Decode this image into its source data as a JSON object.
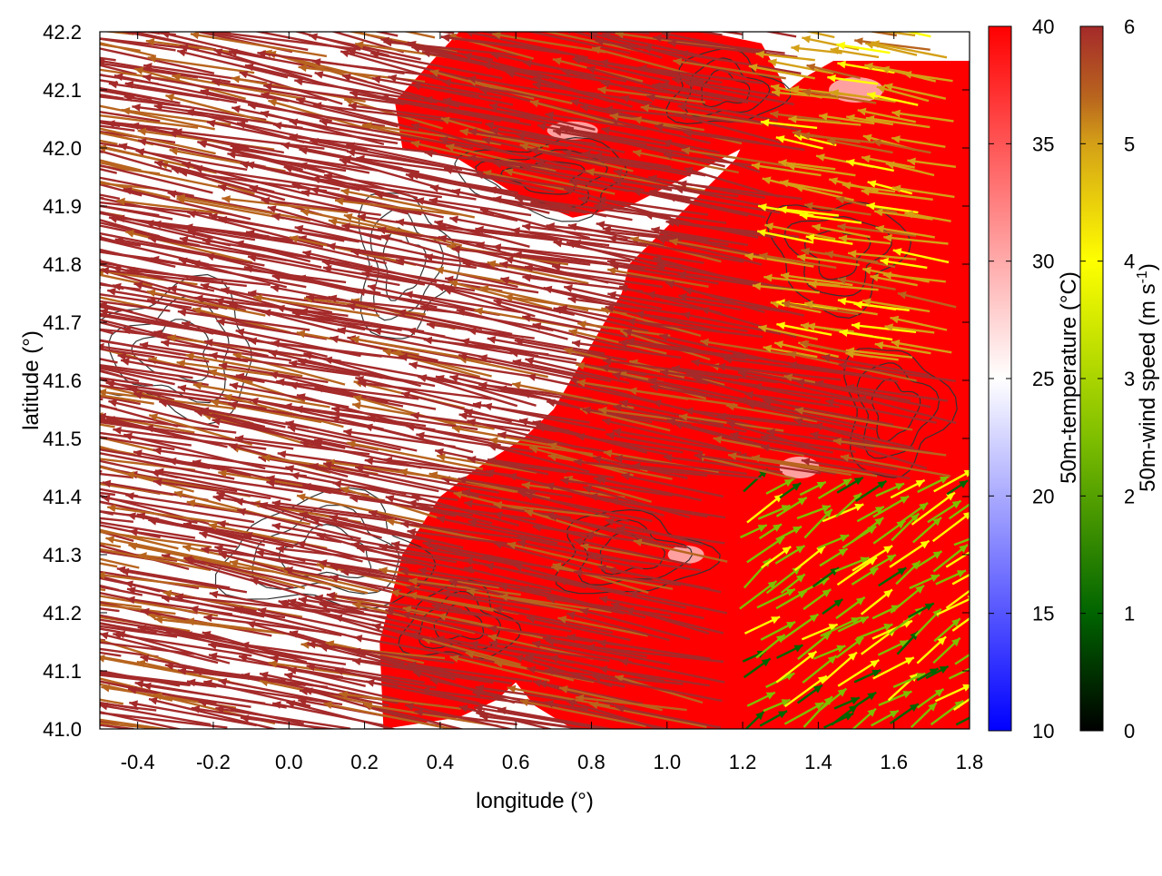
{
  "chart_data": {
    "type": "heatmap",
    "title": "",
    "xlabel": "longitude (°)",
    "ylabel": "latitude (°)",
    "xlim": [
      -0.5,
      1.8
    ],
    "ylim": [
      41.0,
      42.2
    ],
    "x_ticks": [
      "-0.4",
      "-0.2",
      "0.0",
      "0.2",
      "0.4",
      "0.6",
      "0.8",
      "1.0",
      "1.2",
      "1.4",
      "1.6",
      "1.8"
    ],
    "x_tick_values": [
      -0.4,
      -0.2,
      0.0,
      0.2,
      0.4,
      0.6,
      0.8,
      1.0,
      1.2,
      1.4,
      1.6,
      1.8
    ],
    "y_ticks": [
      "41.0",
      "41.1",
      "41.2",
      "41.3",
      "41.4",
      "41.5",
      "41.6",
      "41.7",
      "41.8",
      "41.9",
      "42.0",
      "42.1",
      "42.2"
    ],
    "y_tick_values": [
      41.0,
      41.1,
      41.2,
      41.3,
      41.4,
      41.5,
      41.6,
      41.7,
      41.8,
      41.9,
      42.0,
      42.1,
      42.2
    ],
    "grid": false,
    "temperature_colorbar": {
      "label": "50m-temperature (°C)",
      "range": [
        10,
        40
      ],
      "ticks": [
        "10",
        "15",
        "20",
        "25",
        "30",
        "35",
        "40"
      ],
      "tick_values": [
        10,
        15,
        20,
        25,
        30,
        35,
        40
      ],
      "colors": [
        "#0000ff",
        "#ffffff",
        "#ff0000"
      ]
    },
    "wind_colorbar": {
      "label_main": "50m-wind speed (m s",
      "label_sup": "-1",
      "label_end": ")",
      "range": [
        0,
        6
      ],
      "ticks": [
        "0",
        "1",
        "2",
        "3",
        "4",
        "5",
        "6"
      ],
      "tick_values": [
        0,
        1,
        2,
        3,
        4,
        5,
        6
      ],
      "colors": [
        "#000000",
        "#006400",
        "#7fbf00",
        "#ffff00",
        "#d4a017",
        "#b8641e",
        "#a52a2a"
      ]
    },
    "hot_region_polygon": {
      "lon": [
        1.8,
        1.8,
        1.44,
        1.36,
        1.24,
        1.18,
        0.9,
        0.88,
        0.7,
        0.62,
        0.5,
        0.4,
        0.3,
        0.24,
        0.25,
        0.45,
        0.55,
        0.6,
        0.65,
        0.75,
        0.85,
        0.95,
        1.05,
        1.15,
        1.25,
        1.35,
        1.45,
        1.55,
        1.65,
        1.72,
        1.8
      ],
      "lat": [
        41.0,
        42.15,
        42.15,
        42.12,
        42.06,
        41.98,
        41.8,
        41.75,
        41.55,
        41.5,
        41.45,
        41.4,
        41.3,
        41.15,
        41.0,
        41.02,
        41.05,
        41.08,
        41.04,
        41.0,
        41.0,
        41.0,
        41.0,
        41.0,
        41.0,
        41.0,
        41.0,
        41.0,
        41.0,
        41.0,
        41.0
      ]
    },
    "north_hot_patch": {
      "lon": [
        0.28,
        0.45,
        0.65,
        0.82,
        0.95,
        1.1,
        1.25,
        1.35,
        1.2,
        1.05,
        0.9,
        0.75,
        0.6,
        0.45,
        0.3
      ],
      "lat": [
        42.08,
        42.2,
        42.2,
        42.2,
        42.2,
        42.2,
        42.18,
        42.06,
        42.0,
        41.95,
        41.9,
        41.88,
        41.92,
        41.98,
        42.0
      ]
    },
    "wind_field": {
      "units": "m s-1",
      "west_sector": {
        "lon_range": [
          -0.5,
          0.6
        ],
        "lat_range": [
          41.0,
          42.2
        ],
        "u": -2.9,
        "v": 0.55,
        "speed": 6
      },
      "central_sector": {
        "lon_range": [
          0.6,
          1.4
        ],
        "lat_range": [
          41.0,
          42.2
        ],
        "u": -2.6,
        "v": 0.5,
        "speed": 6
      },
      "southeast_sector": {
        "lon_range": [
          1.2,
          1.8
        ],
        "lat_range": [
          41.0,
          41.4
        ],
        "u": 1.4,
        "v": 0.9,
        "speed": 2
      },
      "northeast_sector": {
        "lon_range": [
          1.4,
          1.8
        ],
        "lat_range": [
          41.6,
          42.2
        ],
        "u": -1.8,
        "v": 0.3,
        "speed": 4
      }
    }
  }
}
